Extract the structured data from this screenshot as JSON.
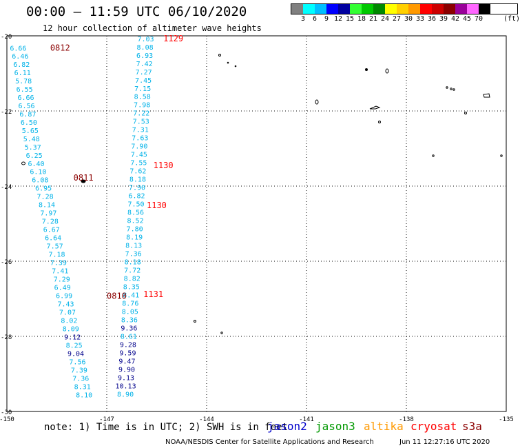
{
  "title": "00:00 – 11:59 UTC 06/10/2020",
  "subtitle": "12 hour collection of altimeter wave heights",
  "legend": {
    "unit": "(ft)",
    "bins": [
      {
        "label": "",
        "color": "#808080"
      },
      {
        "label": "3",
        "color": "#00ffff"
      },
      {
        "label": "6",
        "color": "#00bfff"
      },
      {
        "label": "9",
        "color": "#0000ff"
      },
      {
        "label": "12",
        "color": "#0000a0"
      },
      {
        "label": "15",
        "color": "#33ff33"
      },
      {
        "label": "18",
        "color": "#00c800"
      },
      {
        "label": "21",
        "color": "#008800"
      },
      {
        "label": "24",
        "color": "#ffff00"
      },
      {
        "label": "27",
        "color": "#ffd000"
      },
      {
        "label": "30",
        "color": "#ff9900"
      },
      {
        "label": "33",
        "color": "#ff0000"
      },
      {
        "label": "36",
        "color": "#cc0000"
      },
      {
        "label": "39",
        "color": "#8b0000"
      },
      {
        "label": "42",
        "color": "#990099"
      },
      {
        "label": "45",
        "color": "#ff66ff"
      },
      {
        "label": "70",
        "color": "#000000"
      }
    ]
  },
  "map": {
    "lon_range": [
      -150,
      -135
    ],
    "lat_range": [
      -30,
      -20
    ],
    "lon_ticks": [
      "-150",
      "-147",
      "-144",
      "-141",
      "-138",
      "-135"
    ],
    "lat_ticks": [
      "-20",
      "-22",
      "-24",
      "-26",
      "-28",
      "-30"
    ],
    "pass_labels": [
      {
        "text": "0812",
        "color": "#8b0000",
        "lon": -148.7,
        "lat": -20.32
      },
      {
        "text": "0811",
        "color": "#8b0000",
        "lon": -148.0,
        "lat": -23.78
      },
      {
        "text": "0810",
        "color": "#8b0000",
        "lon": -147.0,
        "lat": -26.93
      },
      {
        "text": "1129",
        "color": "#ff0000",
        "lon": -145.3,
        "lat": -20.07
      },
      {
        "text": "1130",
        "color": "#ff0000",
        "lon": -145.6,
        "lat": -23.45
      },
      {
        "text": "1130",
        "color": "#ff0000",
        "lon": -145.8,
        "lat": -24.51
      },
      {
        "text": "1131",
        "color": "#ff0000",
        "lon": -145.9,
        "lat": -26.88
      }
    ],
    "track_0810": [
      {
        "v": "6.66",
        "lon": -149.66,
        "lat": -20.32
      },
      {
        "v": "6.46",
        "lon": -149.6,
        "lat": -20.53
      },
      {
        "v": "6.82",
        "lon": -149.56,
        "lat": -20.75
      },
      {
        "v": "6.11",
        "lon": -149.53,
        "lat": -20.97
      },
      {
        "v": "5.78",
        "lon": -149.5,
        "lat": -21.19
      },
      {
        "v": "6.55",
        "lon": -149.47,
        "lat": -21.41
      },
      {
        "v": "6.66",
        "lon": -149.43,
        "lat": -21.63
      },
      {
        "v": "6.56",
        "lon": -149.41,
        "lat": -21.85
      },
      {
        "v": "6.87",
        "lon": -149.37,
        "lat": -22.07
      },
      {
        "v": "6.50",
        "lon": -149.34,
        "lat": -22.29
      },
      {
        "v": "5.65",
        "lon": -149.3,
        "lat": -22.51
      },
      {
        "v": "5.48",
        "lon": -149.26,
        "lat": -22.73
      },
      {
        "v": "5.37",
        "lon": -149.22,
        "lat": -22.95
      },
      {
        "v": "6.25",
        "lon": -149.18,
        "lat": -23.17
      },
      {
        "v": "6.40",
        "lon": -149.12,
        "lat": -23.39
      },
      {
        "v": "6.10",
        "lon": -149.06,
        "lat": -23.61
      },
      {
        "v": "6.08",
        "lon": -149.0,
        "lat": -23.83
      },
      {
        "v": "6.95",
        "lon": -148.9,
        "lat": -24.05
      },
      {
        "v": "7.28",
        "lon": -148.85,
        "lat": -24.27
      },
      {
        "v": "8.14",
        "lon": -148.8,
        "lat": -24.49
      },
      {
        "v": "7.97",
        "lon": -148.75,
        "lat": -24.71
      },
      {
        "v": "7.28",
        "lon": -148.7,
        "lat": -24.93
      },
      {
        "v": "6.67",
        "lon": -148.66,
        "lat": -25.15
      },
      {
        "v": "6.64",
        "lon": -148.61,
        "lat": -25.37
      },
      {
        "v": "7.57",
        "lon": -148.56,
        "lat": -25.59
      },
      {
        "v": "7.18",
        "lon": -148.5,
        "lat": -25.81
      },
      {
        "v": "7.39",
        "lon": -148.45,
        "lat": -26.03
      },
      {
        "v": "7.41",
        "lon": -148.4,
        "lat": -26.25
      },
      {
        "v": "7.29",
        "lon": -148.35,
        "lat": -26.47
      },
      {
        "v": "6.49",
        "lon": -148.33,
        "lat": -26.69
      },
      {
        "v": "6.99",
        "lon": -148.28,
        "lat": -26.91
      },
      {
        "v": "7.43",
        "lon": -148.23,
        "lat": -27.13
      },
      {
        "v": "7.07",
        "lon": -148.18,
        "lat": -27.35
      },
      {
        "v": "8.02",
        "lon": -148.13,
        "lat": -27.57
      },
      {
        "v": "8.09",
        "lon": -148.08,
        "lat": -27.79
      },
      {
        "v": "9.12",
        "lon": -148.03,
        "lat": -28.01
      },
      {
        "v": "8.25",
        "lon": -147.98,
        "lat": -28.23
      },
      {
        "v": "9.04",
        "lon": -147.93,
        "lat": -28.45
      },
      {
        "v": "7.56",
        "lon": -147.88,
        "lat": -28.67
      },
      {
        "v": "7.39",
        "lon": -147.83,
        "lat": -28.89
      },
      {
        "v": "7.36",
        "lon": -147.78,
        "lat": -29.11
      },
      {
        "v": "8.31",
        "lon": -147.73,
        "lat": -29.33
      },
      {
        "v": "8.10",
        "lon": -147.68,
        "lat": -29.55
      }
    ],
    "track_1130": [
      {
        "v": "7.03",
        "lon": -145.83,
        "lat": -20.07
      },
      {
        "v": "8.08",
        "lon": -145.85,
        "lat": -20.29
      },
      {
        "v": "6.93",
        "lon": -145.86,
        "lat": -20.51
      },
      {
        "v": "7.42",
        "lon": -145.87,
        "lat": -20.73
      },
      {
        "v": "7.27",
        "lon": -145.89,
        "lat": -20.95
      },
      {
        "v": "7.45",
        "lon": -145.9,
        "lat": -21.17
      },
      {
        "v": "7.15",
        "lon": -145.92,
        "lat": -21.39
      },
      {
        "v": "8.58",
        "lon": -145.93,
        "lat": -21.61
      },
      {
        "v": "7.98",
        "lon": -145.94,
        "lat": -21.83
      },
      {
        "v": "7.22",
        "lon": -145.96,
        "lat": -22.05
      },
      {
        "v": "7.53",
        "lon": -145.97,
        "lat": -22.27
      },
      {
        "v": "7.31",
        "lon": -145.99,
        "lat": -22.49
      },
      {
        "v": "7.63",
        "lon": -146.0,
        "lat": -22.71
      },
      {
        "v": "7.90",
        "lon": -146.02,
        "lat": -22.93
      },
      {
        "v": "7.45",
        "lon": -146.03,
        "lat": -23.15
      },
      {
        "v": "7.55",
        "lon": -146.04,
        "lat": -23.37
      },
      {
        "v": "7.62",
        "lon": -146.06,
        "lat": -23.59
      },
      {
        "v": "8.18",
        "lon": -146.07,
        "lat": -23.81
      },
      {
        "v": "7.90",
        "lon": -146.09,
        "lat": -24.03
      },
      {
        "v": "6.82",
        "lon": -146.1,
        "lat": -24.25
      },
      {
        "v": "7.50",
        "lon": -146.12,
        "lat": -24.47
      },
      {
        "v": "8.56",
        "lon": -146.13,
        "lat": -24.69
      },
      {
        "v": "8.52",
        "lon": -146.14,
        "lat": -24.91
      },
      {
        "v": "7.80",
        "lon": -146.16,
        "lat": -25.13
      },
      {
        "v": "8.19",
        "lon": -146.17,
        "lat": -25.35
      },
      {
        "v": "8.13",
        "lon": -146.19,
        "lat": -25.57
      },
      {
        "v": "7.36",
        "lon": -146.2,
        "lat": -25.79
      },
      {
        "v": "8.18",
        "lon": -146.22,
        "lat": -26.01
      },
      {
        "v": "7.72",
        "lon": -146.23,
        "lat": -26.23
      },
      {
        "v": "8.82",
        "lon": -146.24,
        "lat": -26.45
      },
      {
        "v": "8.35",
        "lon": -146.26,
        "lat": -26.67
      },
      {
        "v": "8.41",
        "lon": -146.27,
        "lat": -26.89
      },
      {
        "v": "8.76",
        "lon": -146.29,
        "lat": -27.11
      },
      {
        "v": "8.05",
        "lon": -146.3,
        "lat": -27.33
      },
      {
        "v": "8.36",
        "lon": -146.32,
        "lat": -27.55
      },
      {
        "v": "9.36",
        "lon": -146.33,
        "lat": -27.77
      },
      {
        "v": "8.61",
        "lon": -146.34,
        "lat": -27.99
      },
      {
        "v": "9.28",
        "lon": -146.36,
        "lat": -28.21
      },
      {
        "v": "9.59",
        "lon": -146.37,
        "lat": -28.43
      },
      {
        "v": "9.47",
        "lon": -146.39,
        "lat": -28.65
      },
      {
        "v": "9.90",
        "lon": -146.4,
        "lat": -28.87
      },
      {
        "v": "9.13",
        "lon": -146.42,
        "lat": -29.09
      },
      {
        "v": "10.13",
        "lon": -146.43,
        "lat": -29.31
      },
      {
        "v": "8.90",
        "lon": -146.44,
        "lat": -29.53
      }
    ]
  },
  "footer": {
    "note": "note:  1) Time is in UTC; 2) SWH is in feet",
    "satellites": [
      {
        "name": "jason2",
        "color": "#0000cc"
      },
      {
        "name": "jason3",
        "color": "#009900"
      },
      {
        "name": "altika",
        "color": "#ff9900"
      },
      {
        "name": "cryosat",
        "color": "#ff0000"
      },
      {
        "name": "s3a",
        "color": "#8b0000"
      }
    ],
    "credit": "NOAA/NESDIS Center for Satellite Applications and Research",
    "timestamp": "Jun 11 12:27:16 UTC 2020"
  }
}
